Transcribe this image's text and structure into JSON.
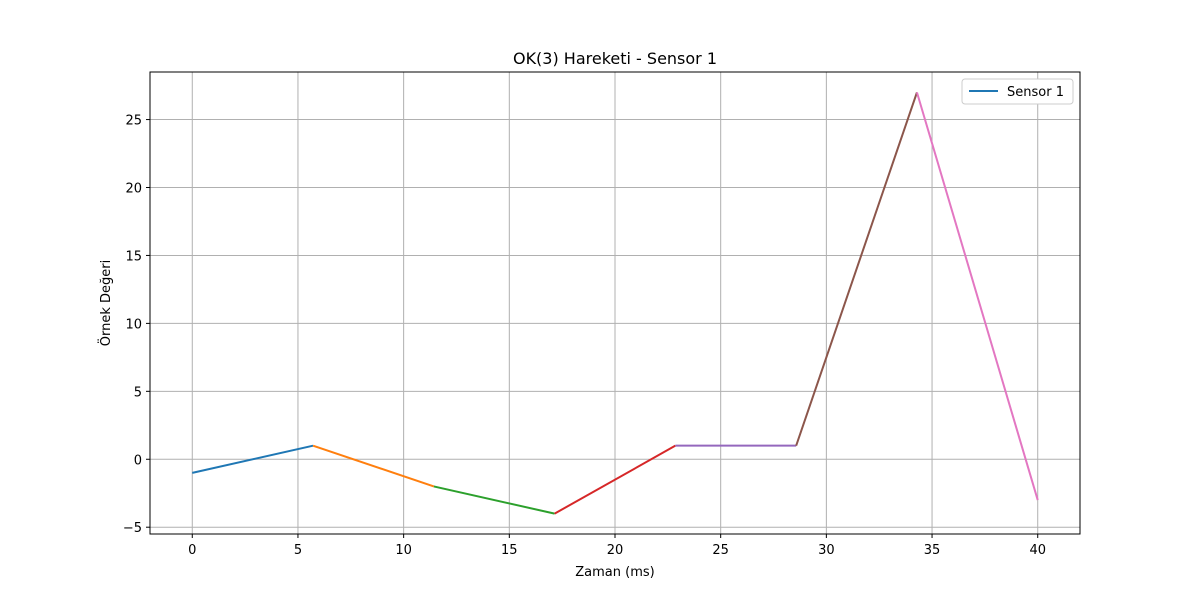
{
  "chart_data": {
    "type": "line",
    "title": "OK(3) Hareketi - Sensor 1",
    "xlabel": "Zaman (ms)",
    "ylabel": "Örnek Değeri",
    "xlim": [
      -2,
      42
    ],
    "ylim": [
      -5.5,
      28.5
    ],
    "xticks": [
      0,
      5,
      10,
      15,
      20,
      25,
      30,
      35,
      40
    ],
    "yticks": [
      -5,
      0,
      5,
      10,
      15,
      20,
      25
    ],
    "ytick_labels": [
      "−5",
      "0",
      "5",
      "10",
      "15",
      "20",
      "25"
    ],
    "grid": true,
    "legend": {
      "position": "top-right",
      "entries": [
        {
          "label": "Sensor 1",
          "color": "#1f77b4"
        }
      ]
    },
    "series": [
      {
        "color": "#1f77b4",
        "x": [
          0,
          5.714
        ],
        "y": [
          -1,
          1
        ]
      },
      {
        "color": "#ff7f0e",
        "x": [
          5.714,
          11.429
        ],
        "y": [
          1,
          -2
        ]
      },
      {
        "color": "#2ca02c",
        "x": [
          11.429,
          17.143
        ],
        "y": [
          -2,
          -4
        ]
      },
      {
        "color": "#d62728",
        "x": [
          17.143,
          22.857
        ],
        "y": [
          -4,
          1
        ]
      },
      {
        "color": "#9467bd",
        "x": [
          22.857,
          28.571
        ],
        "y": [
          1,
          1
        ]
      },
      {
        "color": "#8c564b",
        "x": [
          28.571,
          34.286
        ],
        "y": [
          1,
          27
        ]
      },
      {
        "color": "#e377c2",
        "x": [
          34.286,
          40
        ],
        "y": [
          27,
          -3
        ]
      }
    ]
  }
}
